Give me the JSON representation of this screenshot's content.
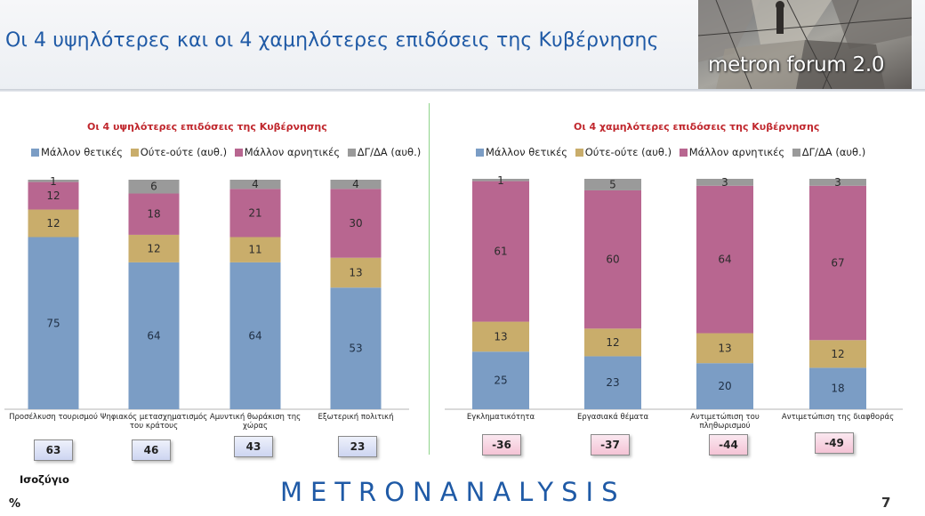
{
  "page": {
    "title": "Οι 4 υψηλότερες και οι 4 χαμηλότερες επιδόσεις της Κυβέρνησης",
    "logo_text": "metron forum 2.0",
    "balance_label": "Ισοζύγιο",
    "percent_sign": "%",
    "brand": "METRONANALYSIS",
    "page_number": "7"
  },
  "colors": {
    "positive": "#7b9dc5",
    "neutral": "#c9ad6b",
    "negative": "#b86690",
    "dk": "#9a9a9a",
    "title_blue": "#1f5aa6",
    "chart_title_red": "#c0272d"
  },
  "chart_data": [
    {
      "type": "bar",
      "stacked": true,
      "title": "Οι 4 υψηλότερες επιδόσεις της Κυβέρνησης",
      "legend_position": "top",
      "categories": [
        "Προσέλκυση τουρισμού",
        "Ψηφιακός μετασχηματισμός του κράτους",
        "Αμυντική θωράκιση της χώρας",
        "Εξωτερική πολιτική"
      ],
      "series": [
        {
          "name": "Μάλλον θετικές",
          "values": [
            75,
            64,
            64,
            53
          ]
        },
        {
          "name": "Ούτε-ούτε (αυθ.)",
          "values": [
            12,
            12,
            11,
            13
          ]
        },
        {
          "name": "Μάλλον αρνητικές",
          "values": [
            12,
            18,
            21,
            30
          ]
        },
        {
          "name": "ΔΓ/ΔΑ (αυθ.)",
          "values": [
            1,
            6,
            4,
            4
          ]
        }
      ],
      "ylim": [
        0,
        100
      ],
      "grid": false,
      "balance": [
        "63",
        "46",
        "43",
        "23"
      ]
    },
    {
      "type": "bar",
      "stacked": true,
      "title": "Οι 4 χαμηλότερες επιδόσεις της Κυβέρνησης",
      "legend_position": "top",
      "categories": [
        "Εγκληματικότητα",
        "Εργασιακά θέματα",
        "Αντιμετώπιση του πληθωρισμού",
        "Αντιμετώπιση της διαφθοράς"
      ],
      "series": [
        {
          "name": "Μάλλον θετικές",
          "values": [
            25,
            23,
            20,
            18
          ]
        },
        {
          "name": "Ούτε-ούτε (αυθ.)",
          "values": [
            13,
            12,
            13,
            12
          ]
        },
        {
          "name": "Μάλλον αρνητικές",
          "values": [
            61,
            60,
            64,
            67
          ]
        },
        {
          "name": "ΔΓ/ΔΑ (αυθ.)",
          "values": [
            1,
            5,
            3,
            3
          ]
        }
      ],
      "ylim": [
        0,
        100
      ],
      "grid": false,
      "balance": [
        "-36",
        "-37",
        "-44",
        "-49"
      ]
    }
  ]
}
